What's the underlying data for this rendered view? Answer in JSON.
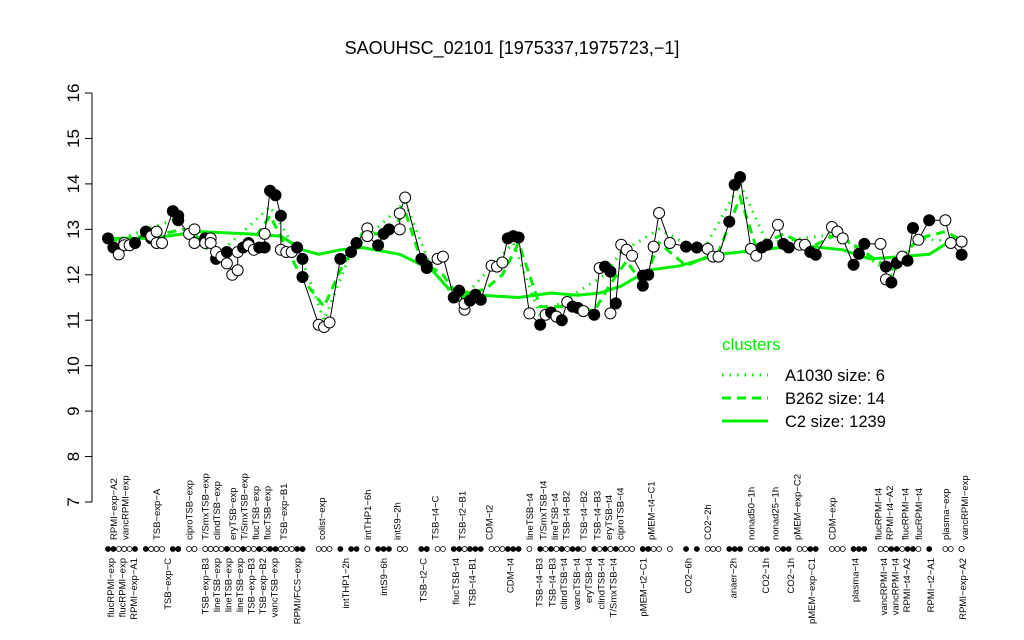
{
  "chart_data": {
    "type": "line",
    "title": "SAOUHSC_02101 [1975337,1975723,−1]",
    "xlabel": "",
    "ylabel": "",
    "ylim": [
      7,
      16
    ],
    "yticks": [
      7,
      8,
      9,
      10,
      11,
      12,
      13,
      14,
      15,
      16
    ],
    "xlim": [
      0,
      159
    ],
    "grid": false,
    "colors": {
      "data": "#000000",
      "clusters": "#00ee00"
    },
    "points": [
      [
        0,
        12.8,
        1
      ],
      [
        1,
        12.6,
        1
      ],
      [
        2,
        12.45,
        0
      ],
      [
        3,
        12.7,
        0
      ],
      [
        3,
        12.65,
        0
      ],
      [
        4,
        12.65,
        0
      ],
      [
        5,
        12.7,
        1
      ],
      [
        7,
        12.95,
        1
      ],
      [
        8,
        12.8,
        1
      ],
      [
        8,
        12.85,
        0
      ],
      [
        9,
        12.95,
        0
      ],
      [
        9,
        12.7,
        0
      ],
      [
        10,
        12.7,
        0
      ],
      [
        12,
        13.4,
        1
      ],
      [
        13,
        13.3,
        1
      ],
      [
        13,
        13.2,
        1
      ],
      [
        15,
        12.9,
        0
      ],
      [
        16,
        13.0,
        0
      ],
      [
        16,
        12.7,
        0
      ],
      [
        18,
        12.8,
        1
      ],
      [
        18,
        12.7,
        0
      ],
      [
        19,
        12.8,
        0
      ],
      [
        19,
        12.7,
        0
      ],
      [
        20,
        12.35,
        1
      ],
      [
        20,
        12.5,
        0
      ],
      [
        21,
        12.4,
        0
      ],
      [
        22,
        12.25,
        0
      ],
      [
        22,
        12.5,
        1
      ],
      [
        23,
        12.0,
        0
      ],
      [
        24,
        12.1,
        0
      ],
      [
        24,
        12.5,
        0
      ],
      [
        25,
        12.6,
        1
      ],
      [
        26,
        12.7,
        1
      ],
      [
        26,
        12.65,
        0
      ],
      [
        27,
        12.55,
        0
      ],
      [
        28,
        12.6,
        1
      ],
      [
        29,
        12.6,
        1
      ],
      [
        29,
        12.9,
        0
      ],
      [
        30,
        13.85,
        1
      ],
      [
        31,
        13.75,
        1
      ],
      [
        32,
        13.3,
        1
      ],
      [
        32,
        12.55,
        0
      ],
      [
        33,
        12.5,
        0
      ],
      [
        34,
        12.5,
        0
      ],
      [
        35,
        12.6,
        1
      ],
      [
        36,
        12.35,
        1
      ],
      [
        36,
        11.95,
        1
      ],
      [
        39,
        10.9,
        0
      ],
      [
        40,
        10.85,
        0
      ],
      [
        41,
        10.95,
        0
      ],
      [
        43,
        12.35,
        1
      ],
      [
        45,
        12.5,
        1
      ],
      [
        46,
        12.7,
        1
      ],
      [
        48,
        13.02,
        0
      ],
      [
        48,
        12.85,
        0
      ],
      [
        50,
        12.65,
        1
      ],
      [
        51,
        12.9,
        1
      ],
      [
        52,
        13.0,
        1
      ],
      [
        54,
        13.0,
        0
      ],
      [
        54,
        13.35,
        0
      ],
      [
        55,
        13.7,
        0
      ],
      [
        58,
        12.35,
        1
      ],
      [
        59,
        12.15,
        1
      ],
      [
        59,
        12.2,
        1
      ],
      [
        61,
        12.35,
        0
      ],
      [
        62,
        12.4,
        0
      ],
      [
        64,
        11.5,
        1
      ],
      [
        65,
        11.65,
        1
      ],
      [
        66,
        11.23,
        0
      ],
      [
        66,
        11.36,
        0
      ],
      [
        67,
        11.43,
        1
      ],
      [
        68,
        11.56,
        1
      ],
      [
        69,
        11.45,
        1
      ],
      [
        71,
        12.2,
        0
      ],
      [
        72,
        12.18,
        0
      ],
      [
        73,
        12.27,
        0
      ],
      [
        74,
        12.8,
        1
      ],
      [
        75,
        12.85,
        1
      ],
      [
        76,
        12.82,
        1
      ],
      [
        78,
        11.15,
        0
      ],
      [
        80,
        10.9,
        1
      ],
      [
        81,
        11.12,
        0
      ],
      [
        82,
        11.17,
        1
      ],
      [
        83,
        11.08,
        0
      ],
      [
        84,
        11.0,
        1
      ],
      [
        85,
        11.4,
        0
      ],
      [
        86,
        11.3,
        1
      ],
      [
        87,
        11.27,
        1
      ],
      [
        88,
        11.2,
        0
      ],
      [
        90,
        11.12,
        1
      ],
      [
        91,
        12.15,
        0
      ],
      [
        92,
        12.18,
        1
      ],
      [
        93,
        12.07,
        1
      ],
      [
        93,
        11.15,
        0
      ],
      [
        94,
        11.37,
        1
      ],
      [
        95,
        12.66,
        0
      ],
      [
        96,
        12.55,
        0
      ],
      [
        97,
        12.42,
        0
      ],
      [
        99,
        11.98,
        1
      ],
      [
        99,
        11.76,
        1
      ],
      [
        100,
        12.0,
        1
      ],
      [
        101,
        12.62,
        0
      ],
      [
        102,
        13.36,
        0
      ],
      [
        104,
        12.7,
        0
      ],
      [
        107,
        12.62,
        1
      ],
      [
        109,
        12.6,
        1
      ],
      [
        111,
        12.57,
        0
      ],
      [
        112,
        12.4,
        0
      ],
      [
        113,
        12.4,
        0
      ],
      [
        115,
        13.17,
        1
      ],
      [
        116,
        13.98,
        1
      ],
      [
        117,
        14.15,
        1
      ],
      [
        119,
        12.57,
        0
      ],
      [
        120,
        12.42,
        0
      ],
      [
        121,
        12.6,
        1
      ],
      [
        122,
        12.66,
        1
      ],
      [
        124,
        13.1,
        0
      ],
      [
        125,
        12.68,
        1
      ],
      [
        126,
        12.6,
        1
      ],
      [
        128,
        12.66,
        0
      ],
      [
        129,
        12.66,
        0
      ],
      [
        130,
        12.5,
        1
      ],
      [
        131,
        12.44,
        1
      ],
      [
        134,
        13.05,
        0
      ],
      [
        135,
        12.95,
        0
      ],
      [
        136,
        12.8,
        0
      ],
      [
        138,
        12.22,
        1
      ],
      [
        139,
        12.46,
        1
      ],
      [
        140,
        12.68,
        1
      ],
      [
        143,
        12.68,
        0
      ],
      [
        144,
        12.18,
        1
      ],
      [
        144,
        11.9,
        0
      ],
      [
        145,
        11.83,
        1
      ],
      [
        146,
        12.26,
        1
      ],
      [
        147,
        12.4,
        0
      ],
      [
        148,
        12.31,
        1
      ],
      [
        149,
        13.03,
        1
      ],
      [
        150,
        12.77,
        0
      ],
      [
        152,
        13.2,
        1
      ],
      [
        155,
        13.2,
        0
      ],
      [
        156,
        12.7,
        0
      ],
      [
        158,
        12.44,
        1
      ],
      [
        158,
        12.73,
        0
      ]
    ],
    "series": [
      {
        "name": "A1030 size: 6",
        "style": "dotted",
        "values": [
          [
            0,
            12.7
          ],
          [
            12,
            13.2
          ],
          [
            20,
            12.4
          ],
          [
            30,
            13.5
          ],
          [
            36,
            12.3
          ],
          [
            40,
            11.0
          ],
          [
            45,
            12.5
          ],
          [
            55,
            13.6
          ],
          [
            60,
            12.1
          ],
          [
            65,
            11.4
          ],
          [
            75,
            12.7
          ],
          [
            80,
            11.1
          ],
          [
            92,
            12.0
          ],
          [
            95,
            12.5
          ],
          [
            102,
            13.0
          ],
          [
            110,
            12.5
          ],
          [
            117,
            14.0
          ],
          [
            122,
            12.7
          ],
          [
            135,
            12.9
          ],
          [
            145,
            12.0
          ],
          [
            150,
            12.8
          ],
          [
            159,
            12.7
          ]
        ]
      },
      {
        "name": "B262 size: 14",
        "style": "dashed",
        "values": [
          [
            0,
            12.75
          ],
          [
            10,
            12.9
          ],
          [
            14,
            13.0
          ],
          [
            17,
            12.8
          ],
          [
            22,
            12.4
          ],
          [
            26,
            12.6
          ],
          [
            30,
            13.3
          ],
          [
            33,
            12.6
          ],
          [
            36,
            11.9
          ],
          [
            40,
            11.3
          ],
          [
            43,
            12.1
          ],
          [
            47,
            12.9
          ],
          [
            52,
            12.9
          ],
          [
            55,
            13.4
          ],
          [
            58,
            12.3
          ],
          [
            62,
            12.0
          ],
          [
            65,
            11.5
          ],
          [
            70,
            11.7
          ],
          [
            73,
            12.0
          ],
          [
            76,
            12.7
          ],
          [
            80,
            11.3
          ],
          [
            86,
            11.3
          ],
          [
            90,
            11.2
          ],
          [
            93,
            11.8
          ],
          [
            96,
            12.3
          ],
          [
            99,
            11.8
          ],
          [
            102,
            12.7
          ],
          [
            107,
            12.2
          ],
          [
            113,
            12.5
          ],
          [
            117,
            13.7
          ],
          [
            120,
            12.6
          ],
          [
            125,
            12.9
          ],
          [
            130,
            12.6
          ],
          [
            135,
            12.9
          ],
          [
            140,
            12.5
          ],
          [
            145,
            12.1
          ],
          [
            150,
            12.8
          ],
          [
            155,
            12.95
          ],
          [
            159,
            12.7
          ]
        ]
      },
      {
        "name": "C2 size: 1239",
        "style": "solid",
        "values": [
          [
            0,
            12.8
          ],
          [
            8,
            12.8
          ],
          [
            17,
            12.95
          ],
          [
            26,
            12.9
          ],
          [
            32,
            12.85
          ],
          [
            36,
            12.55
          ],
          [
            39,
            12.45
          ],
          [
            43,
            12.55
          ],
          [
            47,
            12.6
          ],
          [
            54,
            12.45
          ],
          [
            60,
            12.1
          ],
          [
            63,
            11.7
          ],
          [
            69,
            11.55
          ],
          [
            76,
            11.5
          ],
          [
            82,
            11.6
          ],
          [
            87,
            11.55
          ],
          [
            91,
            11.6
          ],
          [
            95,
            11.75
          ],
          [
            100,
            12.1
          ],
          [
            106,
            12.2
          ],
          [
            113,
            12.45
          ],
          [
            121,
            12.55
          ],
          [
            128,
            12.65
          ],
          [
            136,
            12.55
          ],
          [
            141,
            12.35
          ],
          [
            147,
            12.4
          ],
          [
            152,
            12.45
          ],
          [
            156,
            12.75
          ],
          [
            159,
            12.75
          ]
        ]
      }
    ],
    "legend": {
      "title": "clusters",
      "placement": "right"
    },
    "xtick_labels_top": [
      [
        1,
        "RPMI−exp−A2"
      ],
      [
        3,
        "vancRPMI−exp"
      ],
      [
        9,
        "TSB−exp−A"
      ],
      [
        15,
        "ciproTSB−exp"
      ],
      [
        18,
        "T/SmxTSB−exp"
      ],
      [
        20,
        "clindTSB−exp"
      ],
      [
        23,
        "eryTSB−exp"
      ],
      [
        25,
        "T/SmxTSB−exp"
      ],
      [
        26.5,
        "flucTSB−exp"
      ],
      [
        28,
        "flucTSB−exp"
      ],
      [
        32.5,
        "TSB−exp−B1"
      ],
      [
        39.5,
        "colist−exp"
      ],
      [
        48,
        "intTHP1−6h"
      ],
      [
        53.5,
        "intS9−2h"
      ],
      [
        60.5,
        "TSB−t4−C"
      ],
      [
        65.5,
        "TSB−t2−B1"
      ],
      [
        70.5,
        "CDM−t2"
      ],
      [
        78,
        "lineTSB−t4"
      ],
      [
        80.5,
        "T/SmxTSB−t4"
      ],
      [
        82.5,
        "lineTSB−t4"
      ],
      [
        84.5,
        "TSB−t4−B2"
      ],
      [
        88,
        "TSB−t4−B2"
      ],
      [
        90.5,
        "TSB−t4−B3"
      ],
      [
        92,
        "eryTSB−t4"
      ],
      [
        94,
        "ciproTSB−t4"
      ],
      [
        100.5,
        "pMEM−t4−C1"
      ],
      [
        111,
        "CO2−2h"
      ],
      [
        119,
        "nonad50−1h"
      ],
      [
        123.5,
        "nonad25−1h"
      ],
      [
        127.5,
        "pMEM−exp−C2"
      ],
      [
        134,
        "CDM−exp"
      ],
      [
        142.5,
        "flucRPMI−t4"
      ],
      [
        144,
        "RPMI−t4−A2"
      ],
      [
        147.5,
        "flucRPMI−t4"
      ],
      [
        150,
        "flucRPMI−t4"
      ],
      [
        155,
        "plasma−exp"
      ],
      [
        158.5,
        "vancRPMI−exp"
      ]
    ],
    "xtick_labels_bottom": [
      [
        0.5,
        "flucRPMI−exp"
      ],
      [
        2.5,
        "flucRPMI−exp"
      ],
      [
        4.5,
        "RPMI−exp−A1"
      ],
      [
        11,
        "TSB−exp−C"
      ],
      [
        18,
        "TSB−exp−B3"
      ],
      [
        19.8,
        "lineTSB−exp"
      ],
      [
        22,
        "lineTSB−exp"
      ],
      [
        23.9,
        "lineTSB−exp"
      ],
      [
        24.8,
        "TSB−exp−B3"
      ],
      [
        26.8,
        "TSB−exp−B2"
      ],
      [
        29.8,
        "vancTSB−exp"
      ],
      [
        35,
        "RPMI/FCS−exp"
      ],
      [
        44,
        "intTHP1−2h"
      ],
      [
        51,
        "intS9−6h"
      ],
      [
        58.3,
        "TSB−t2−C"
      ],
      [
        64.3,
        "flucTSB−t4"
      ],
      [
        67.4,
        "TSB−t4−B1"
      ],
      [
        74.4,
        "CDM−t4"
      ],
      [
        79.8,
        "TSB−t4−B3"
      ],
      [
        82.2,
        "TSB−t4−B3"
      ],
      [
        84.3,
        "clindTSB−t4"
      ],
      [
        86.7,
        "vancTSB−t4"
      ],
      [
        88.9,
        "eryTSB−t4"
      ],
      [
        91.3,
        "clindTSB−t4"
      ],
      [
        93.5,
        "T/SmxTSB−t4"
      ],
      [
        99,
        "pMEM−t2−C1"
      ],
      [
        107.4,
        "CO2−6h"
      ],
      [
        115.7,
        "anaer−2h"
      ],
      [
        121.7,
        "CO2−1h"
      ],
      [
        126.3,
        "CO2−1h"
      ],
      [
        130.2,
        "pMEM−exp−C1"
      ],
      [
        138.3,
        "plasma−t4"
      ],
      [
        143.5,
        "vancRPMI−t4"
      ],
      [
        144.8,
        "vancRPMI−t4"
      ],
      [
        147.2,
        "RPMI−t4−A2"
      ],
      [
        152.2,
        "RPMI−t2−A1"
      ],
      [
        158.2,
        "RPMI−exp−A2"
      ]
    ]
  }
}
